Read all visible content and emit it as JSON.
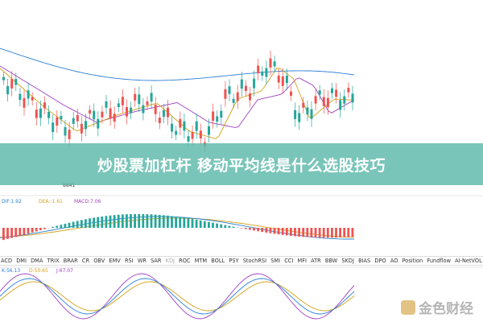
{
  "banner": {
    "title": "炒股票加杠杆 移动平均线是什么选股技巧"
  },
  "price_panel": {
    "marker_label": "8841"
  },
  "macd_panel": {
    "labels": [
      "DIF:1.92",
      "DEA:-1.61",
      "MACD:7.06"
    ]
  },
  "indicator_tabs": [
    "ACD",
    "DMI",
    "DMA",
    "TRIX",
    "BRAR",
    "CR",
    "OBV",
    "EMV",
    "RSI",
    "WR",
    "SAR",
    "KDJ",
    "ROC",
    "MTM",
    "BOLL",
    "PSY",
    "StochRSI",
    "SMI",
    "CCI",
    "MFI",
    "ATR",
    "BBW",
    "SKDJ",
    "BIAS",
    "DPO",
    "AO",
    "Position",
    "Fundflow",
    "AI-NetVOL"
  ],
  "kdj_panel": {
    "labels": [
      "K:56.13",
      "D:50.65",
      "J:67.07"
    ]
  },
  "watermark": {
    "text": "金色财经"
  }
}
